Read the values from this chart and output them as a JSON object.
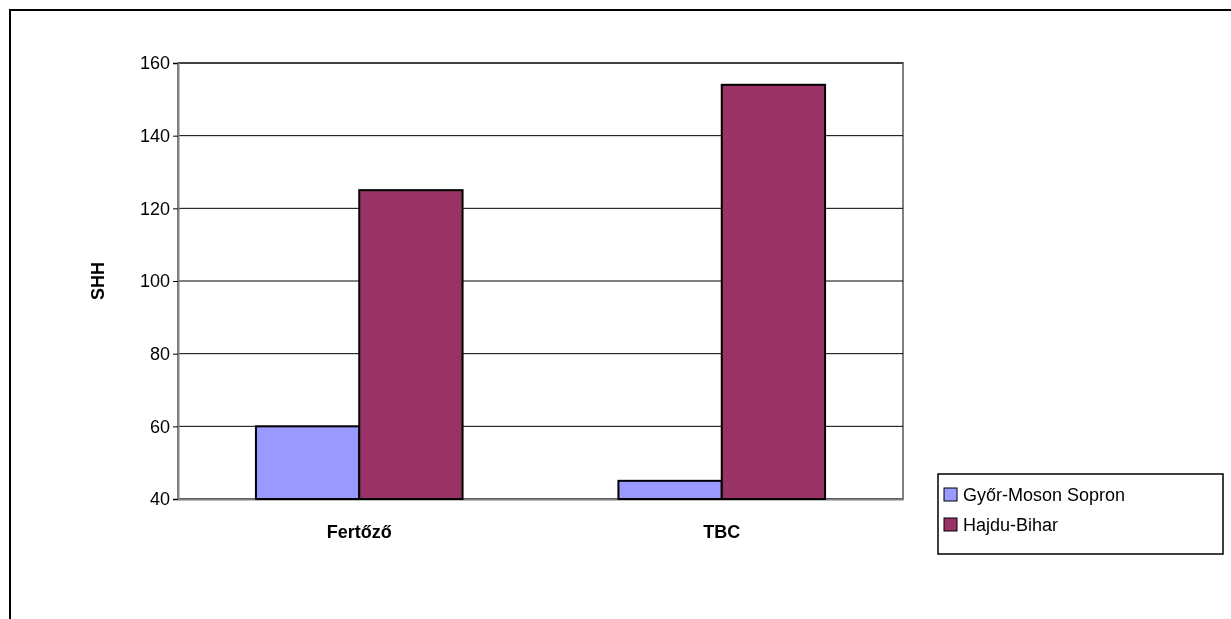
{
  "chart_data": {
    "type": "bar",
    "ylabel": "SHH",
    "categories": [
      "Fertőző",
      "TBC"
    ],
    "series": [
      {
        "name": "Győr-Moson Sopron",
        "color": "#9999ff",
        "values": [
          60,
          45
        ]
      },
      {
        "name": "Hajdu-Bihar",
        "color": "#993366",
        "values": [
          125,
          154
        ]
      }
    ],
    "ylim": [
      40,
      160
    ],
    "yticks": [
      40,
      60,
      80,
      100,
      120,
      140,
      160
    ],
    "grid": "y",
    "legend": "right"
  }
}
